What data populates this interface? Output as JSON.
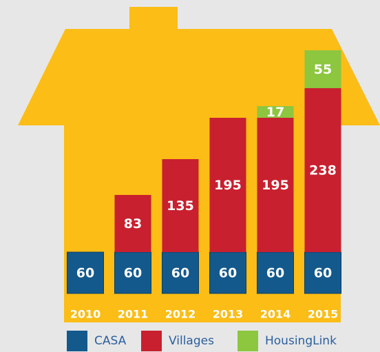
{
  "chart_data": {
    "type": "bar",
    "stacked": true,
    "categories": [
      "2010",
      "2011",
      "2012",
      "2013",
      "2014",
      "2015"
    ],
    "series": [
      {
        "name": "CASA",
        "color": "#13598c",
        "values": [
          60,
          60,
          60,
          60,
          60,
          60
        ]
      },
      {
        "name": "Villages",
        "color": "#c8202f",
        "values": [
          null,
          83,
          135,
          195,
          195,
          238
        ]
      },
      {
        "name": "HousingLink",
        "color": "#8dc63f",
        "values": [
          null,
          null,
          null,
          null,
          17,
          55
        ]
      }
    ]
  }
}
